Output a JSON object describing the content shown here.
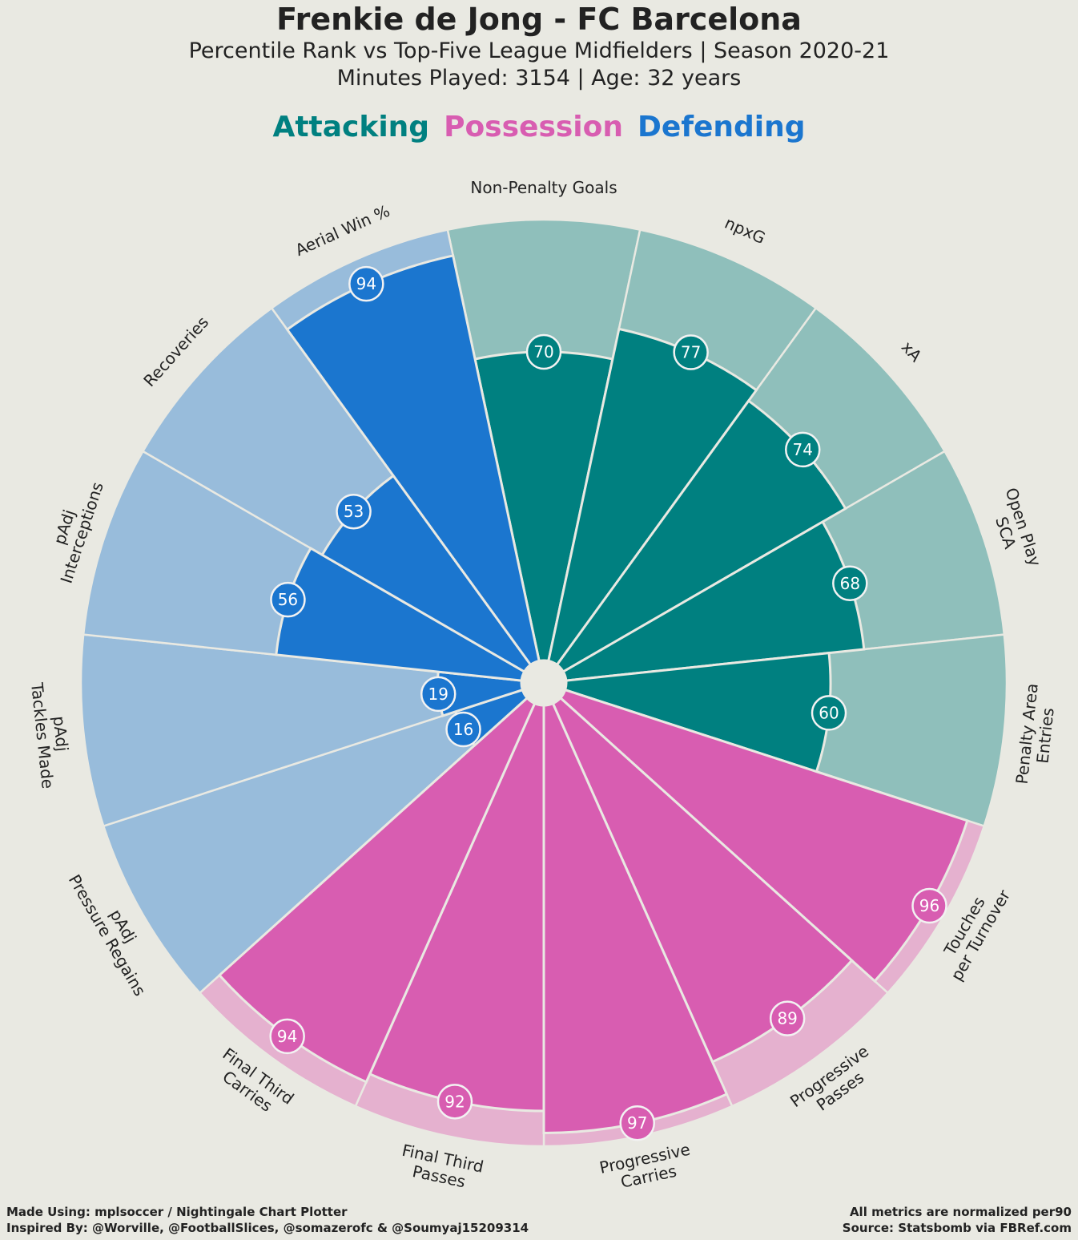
{
  "header": {
    "title": "Frenkie de Jong - FC Barcelona",
    "subtitle_line1": "Percentile Rank vs Top-Five League Midfielders | Season 2020-21",
    "subtitle_line2": "Minutes Played: 3154 | Age: 32 years"
  },
  "legend": {
    "attacking": "Attacking",
    "possession": "Possession",
    "defending": "Defending"
  },
  "colors": {
    "background": "#e9e9e2",
    "attacking": "#008080",
    "attacking_light": "#8fbfbb",
    "possession": "#d85db1",
    "possession_light": "#e5b1cf",
    "defending": "#1b76cf",
    "defending_light": "#98bcdb",
    "divider": "#e9e9e2"
  },
  "chart_data": {
    "type": "radial-bar",
    "range": [
      0,
      100
    ],
    "categories": [
      {
        "name": "Non-Penalty Goals",
        "lines": [
          "Non-Penalty Goals"
        ],
        "group": "attacking",
        "value": 70
      },
      {
        "name": "npxG",
        "lines": [
          "npxG"
        ],
        "group": "attacking",
        "value": 77
      },
      {
        "name": "xA",
        "lines": [
          "xA"
        ],
        "group": "attacking",
        "value": 74
      },
      {
        "name": "Open Play SCA",
        "lines": [
          "Open Play",
          "SCA"
        ],
        "group": "attacking",
        "value": 68
      },
      {
        "name": "Penalty Area Entries",
        "lines": [
          "Penalty Area",
          "Entries"
        ],
        "group": "attacking",
        "value": 60
      },
      {
        "name": "Touches per Turnover",
        "lines": [
          "Touches",
          "per Turnover"
        ],
        "group": "possession",
        "value": 96
      },
      {
        "name": "Progressive Passes",
        "lines": [
          "Progressive",
          "Passes"
        ],
        "group": "possession",
        "value": 89
      },
      {
        "name": "Progressive Carries",
        "lines": [
          "Progressive",
          "Carries"
        ],
        "group": "possession",
        "value": 97
      },
      {
        "name": "Final Third Passes",
        "lines": [
          "Final Third",
          "Passes"
        ],
        "group": "possession",
        "value": 92
      },
      {
        "name": "Final Third Carries",
        "lines": [
          "Final Third",
          "Carries"
        ],
        "group": "possession",
        "value": 94
      },
      {
        "name": "pAdj Pressure Regains",
        "lines": [
          "pAdj",
          "Pressure Regains"
        ],
        "group": "defending",
        "value": 16
      },
      {
        "name": "pAdj Tackles Made",
        "lines": [
          "pAdj",
          "Tackles Made"
        ],
        "group": "defending",
        "value": 19
      },
      {
        "name": "pAdj Interceptions",
        "lines": [
          "pAdj",
          "Interceptions"
        ],
        "group": "defending",
        "value": 56
      },
      {
        "name": "Recoveries",
        "lines": [
          "Recoveries"
        ],
        "group": "defending",
        "value": 53
      },
      {
        "name": "Aerial Win %",
        "lines": [
          "Aerial Win %"
        ],
        "group": "defending",
        "value": 94
      }
    ]
  },
  "footer": {
    "left_line1": "Made Using: mplsoccer / Nightingale Chart Plotter",
    "left_line2": "Inspired By: @Worville, @FootballSlices, @somazerofc & @Soumyaj15209314",
    "right_line1": "All metrics are normalized per90",
    "right_line2": "Source: Statsbomb via FBRef.com"
  }
}
